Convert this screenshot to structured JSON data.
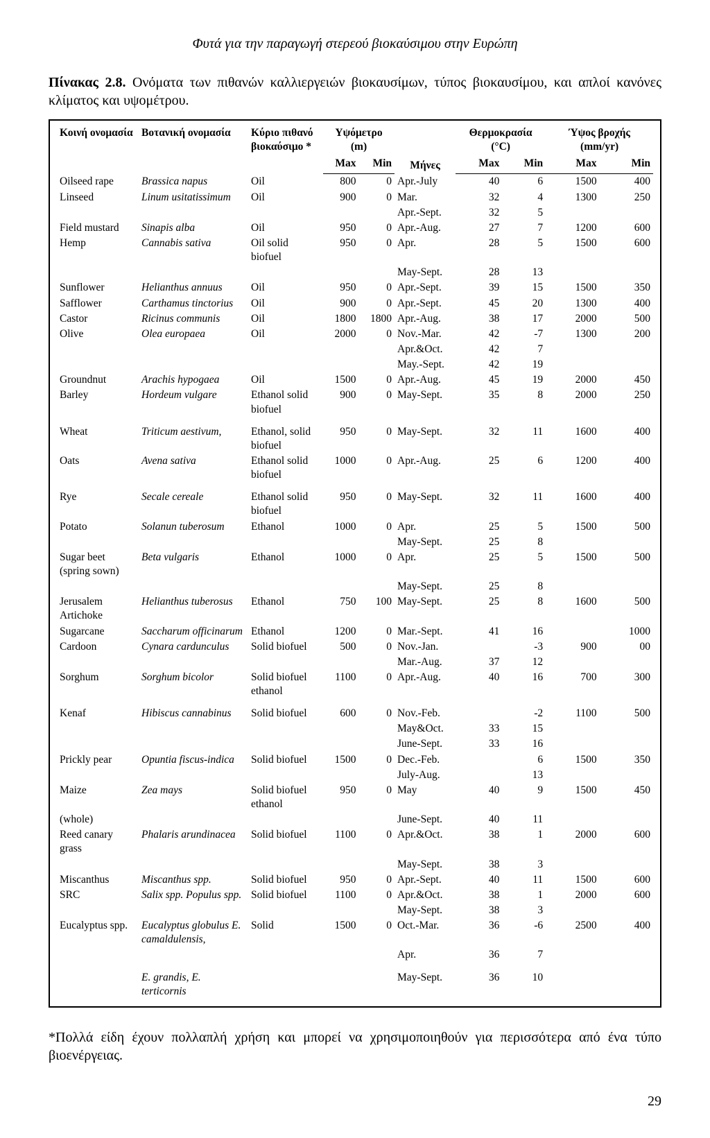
{
  "header_text": "Φυτά για την παραγωγή στερεού βιοκαύσιμου στην Ευρώπη",
  "caption_label": "Πίνακας 2.8.",
  "caption_text": " Ονόματα των πιθανών καλλιεργειών βιοκαυσίμων, τύπος βιοκαυσίμου, και απλοί κανόνες κλίματος και υψομέτρου.",
  "headers": {
    "common": "Κοινή ονομασία",
    "botanical": "Βοτανική ονομασία",
    "biofuel": "Κύριο πιθανό βιοκαύσιμο *",
    "altitude": "Υψόμετρο (m)",
    "temperature": "Θερμοκρασία (°C)",
    "rain": "Ύψος βροχής (mm/yr)",
    "max": "Max",
    "min": "Min",
    "months": "Μήνες"
  },
  "rows": [
    {
      "c": "Oilseed rape",
      "b": "Brassica napus",
      "f": "Oil",
      "amax": "800",
      "amin": "0",
      "m": "Apr.-July",
      "tmax": "40",
      "tmin": "6",
      "rmax": "1500",
      "rmin": "400"
    },
    {
      "c": "Linseed",
      "b": "Linum usitatissimum",
      "f": "Oil",
      "amax": "900",
      "amin": "0",
      "m": "Mar.",
      "tmax": "32",
      "tmin": "4",
      "rmax": "1300",
      "rmin": "250"
    },
    {
      "c": "",
      "b": "",
      "f": "",
      "amax": "",
      "amin": "",
      "m": "Apr.-Sept.",
      "tmax": "32",
      "tmin": "5",
      "rmax": "",
      "rmin": ""
    },
    {
      "c": "Field mustard",
      "b": "Sinapis alba",
      "f": "Oil",
      "amax": "950",
      "amin": "0",
      "m": "Apr.-Aug.",
      "tmax": "27",
      "tmin": "7",
      "rmax": "1200",
      "rmin": "600"
    },
    {
      "c": "Hemp",
      "b": "Cannabis sativa",
      "f": "Oil solid biofuel",
      "amax": "950",
      "amin": "0",
      "m": "Apr.",
      "tmax": "28",
      "tmin": "5",
      "rmax": "1500",
      "rmin": "600"
    },
    {
      "c": "",
      "b": "",
      "f": "",
      "amax": "",
      "amin": "",
      "m": "May-Sept.",
      "tmax": "28",
      "tmin": "13",
      "rmax": "",
      "rmin": ""
    },
    {
      "c": "Sunflower",
      "b": "Helianthus annuus",
      "f": "Oil",
      "amax": "950",
      "amin": "0",
      "m": "Apr.-Sept.",
      "tmax": "39",
      "tmin": "15",
      "rmax": "1500",
      "rmin": "350"
    },
    {
      "c": "Safflower",
      "b": "Carthamus tinctorius",
      "f": "Oil",
      "amax": "900",
      "amin": "0",
      "m": "Apr.-Sept.",
      "tmax": "45",
      "tmin": "20",
      "rmax": "1300",
      "rmin": "400"
    },
    {
      "c": "Castor",
      "b": "Ricinus communis",
      "f": "Oil",
      "amax": "1800",
      "amin": "1800",
      "m": "Apr.-Aug.",
      "tmax": "38",
      "tmin": "17",
      "rmax": "2000",
      "rmin": "500"
    },
    {
      "c": "Olive",
      "b": "Olea europaea",
      "f": "Oil",
      "amax": "2000",
      "amin": "0",
      "m": "Nov.-Mar.",
      "tmax": "42",
      "tmin": "-7",
      "rmax": "1300",
      "rmin": "200"
    },
    {
      "c": "",
      "b": "",
      "f": "",
      "amax": "",
      "amin": "",
      "m": "Apr.&Oct.",
      "tmax": "42",
      "tmin": "7",
      "rmax": "",
      "rmin": ""
    },
    {
      "c": "",
      "b": "",
      "f": "",
      "amax": "",
      "amin": "",
      "m": "May.-Sept.",
      "tmax": "42",
      "tmin": "19",
      "rmax": "",
      "rmin": ""
    },
    {
      "c": "Groundnut",
      "b": "Arachis hypogaea",
      "f": "Oil",
      "amax": "1500",
      "amin": "0",
      "m": "Apr.-Aug.",
      "tmax": "45",
      "tmin": "19",
      "rmax": "2000",
      "rmin": "450"
    },
    {
      "c": "Barley",
      "b": "Hordeum vulgare",
      "f": "Ethanol solid biofuel",
      "amax": "900",
      "amin": "0",
      "m": "May-Sept.",
      "tmax": "35",
      "tmin": "8",
      "rmax": "2000",
      "rmin": "250"
    },
    {
      "sep": true
    },
    {
      "c": "Wheat",
      "b": "Triticum aestivum,",
      "f": "Ethanol, solid biofuel",
      "amax": "950",
      "amin": "0",
      "m": "May-Sept.",
      "tmax": "32",
      "tmin": "11",
      "rmax": "1600",
      "rmin": "400"
    },
    {
      "c": "Oats",
      "b": "Avena sativa",
      "f": "Ethanol solid biofuel",
      "amax": "1000",
      "amin": "0",
      "m": "Apr.-Aug.",
      "tmax": "25",
      "tmin": "6",
      "rmax": "1200",
      "rmin": "400"
    },
    {
      "sep": true
    },
    {
      "c": "Rye",
      "b": "Secale cereale",
      "f": "Ethanol solid biofuel",
      "amax": "950",
      "amin": "0",
      "m": "May-Sept.",
      "tmax": "32",
      "tmin": "11",
      "rmax": "1600",
      "rmin": "400"
    },
    {
      "c": "Potato",
      "b": "Solanun tuberosum",
      "f": "Ethanol",
      "amax": "1000",
      "amin": "0",
      "m": "Apr.",
      "tmax": "25",
      "tmin": "5",
      "rmax": "1500",
      "rmin": "500"
    },
    {
      "c": "",
      "b": "",
      "f": "",
      "amax": "",
      "amin": "",
      "m": "May-Sept.",
      "tmax": "25",
      "tmin": "8",
      "rmax": "",
      "rmin": ""
    },
    {
      "c": "Sugar beet (spring sown)",
      "b": "Beta vulgaris",
      "f": "Ethanol",
      "amax": "1000",
      "amin": "0",
      "m": "Apr.",
      "tmax": "25",
      "tmin": "5",
      "rmax": "1500",
      "rmin": "500"
    },
    {
      "c": "",
      "b": "",
      "f": "",
      "amax": "",
      "amin": "",
      "m": "May-Sept.",
      "tmax": "25",
      "tmin": "8",
      "rmax": "",
      "rmin": ""
    },
    {
      "c": "Jerusalem Artichoke",
      "b": "Helianthus tuberosus",
      "f": "Ethanol",
      "amax": "750",
      "amin": "100",
      "m": "May-Sept.",
      "tmax": "25",
      "tmin": "8",
      "rmax": "1600",
      "rmin": "500"
    },
    {
      "c": "Sugarcane",
      "b": "Saccharum officinarum",
      "f": "Ethanol",
      "amax": "1200",
      "amin": "0",
      "m": "Mar.-Sept.",
      "tmax": "41",
      "tmin": "16",
      "rmax": "",
      "rmin": "1000"
    },
    {
      "c": "Cardoon",
      "b": "Cynara cardunculus",
      "f": "Solid biofuel",
      "amax": "500",
      "amin": "0",
      "m": "Nov.-Jan.",
      "tmax": "",
      "tmin": "-3",
      "rmax": "900",
      "rmin": "00"
    },
    {
      "c": "",
      "b": "",
      "f": "",
      "amax": "",
      "amin": "",
      "m": "Mar.-Aug.",
      "tmax": "37",
      "tmin": "12",
      "rmax": "",
      "rmin": ""
    },
    {
      "c": "Sorghum",
      "b": "Sorghum bicolor",
      "f": "Solid biofuel ethanol",
      "amax": "1100",
      "amin": "0",
      "m": "Apr.-Aug.",
      "tmax": "40",
      "tmin": "16",
      "rmax": "700",
      "rmin": "300"
    },
    {
      "sep": true
    },
    {
      "c": "Kenaf",
      "b": "Hibiscus cannabinus",
      "f": "Solid biofuel",
      "amax": "600",
      "amin": "0",
      "m": "Nov.-Feb.",
      "tmax": "",
      "tmin": "-2",
      "rmax": "1100",
      "rmin": "500"
    },
    {
      "c": "",
      "b": "",
      "f": "",
      "amax": "",
      "amin": "",
      "m": "May&Oct.",
      "tmax": "33",
      "tmin": "15",
      "rmax": "",
      "rmin": ""
    },
    {
      "c": "",
      "b": "",
      "f": "",
      "amax": "",
      "amin": "",
      "m": "June-Sept.",
      "tmax": "33",
      "tmin": "16",
      "rmax": "",
      "rmin": ""
    },
    {
      "c": "Prickly pear",
      "b": "Opuntia fiscus-indica",
      "f": "Solid biofuel",
      "amax": "1500",
      "amin": "0",
      "m": "Dec.-Feb.",
      "tmax": "",
      "tmin": "6",
      "rmax": "1500",
      "rmin": "350"
    },
    {
      "c": "",
      "b": "",
      "f": "",
      "amax": "",
      "amin": "",
      "m": "July-Aug.",
      "tmax": "",
      "tmin": "13",
      "rmax": "",
      "rmin": ""
    },
    {
      "c": "Maize",
      "b": "Zea mays",
      "f": "Solid biofuel ethanol",
      "amax": "950",
      "amin": "0",
      "m": "May",
      "tmax": "40",
      "tmin": "9",
      "rmax": "1500",
      "rmin": "450"
    },
    {
      "c": "(whole)",
      "b": "",
      "f": "",
      "amax": "",
      "amin": "",
      "m": "June-Sept.",
      "tmax": "40",
      "tmin": "11",
      "rmax": "",
      "rmin": ""
    },
    {
      "c": "Reed canary grass",
      "b": "Phalaris arundinacea",
      "f": "Solid biofuel",
      "amax": "1100",
      "amin": "0",
      "m": "Apr.&Oct.",
      "tmax": "38",
      "tmin": "1",
      "rmax": "2000",
      "rmin": "600"
    },
    {
      "c": "",
      "b": "",
      "f": "",
      "amax": "",
      "amin": "",
      "m": "May-Sept.",
      "tmax": "38",
      "tmin": "3",
      "rmax": "",
      "rmin": ""
    },
    {
      "c": "Miscanthus",
      "b": "Miscanthus spp.",
      "f": "Solid biofuel",
      "amax": "950",
      "amin": "0",
      "m": "Apr.-Sept.",
      "tmax": "40",
      "tmin": "11",
      "rmax": "1500",
      "rmin": "600"
    },
    {
      "c": "SRC",
      "b": "Salix spp. Populus spp.",
      "f": "Solid biofuel",
      "amax": "1100",
      "amin": "0",
      "m": "Apr.&Oct.",
      "tmax": "38",
      "tmin": "1",
      "rmax": "2000",
      "rmin": "600"
    },
    {
      "c": "",
      "b": "",
      "f": "",
      "amax": "",
      "amin": "",
      "m": "May-Sept.",
      "tmax": "38",
      "tmin": "3",
      "rmax": "",
      "rmin": ""
    },
    {
      "c": "Eucalyptus spp.",
      "b": "Eucalyptus globulus E. camaldulensis,",
      "f": "Solid",
      "amax": "1500",
      "amin": "0",
      "m": "Oct.-Mar.",
      "tmax": "36",
      "tmin": "-6",
      "rmax": "2500",
      "rmin": "400"
    },
    {
      "c": "",
      "b": "",
      "f": "",
      "amax": "",
      "amin": "",
      "m": "Apr.",
      "tmax": "36",
      "tmin": "7",
      "rmax": "",
      "rmin": ""
    },
    {
      "sep": true
    },
    {
      "c": "",
      "b": "E. grandis, E. terticornis",
      "f": "",
      "amax": "",
      "amin": "",
      "m": "May-Sept.",
      "tmax": "36",
      "tmin": "10",
      "rmax": "",
      "rmin": ""
    }
  ],
  "footnote": "*Πολλά είδη έχουν πολλαπλή χρήση και μπορεί να χρησιμοποιηθούν για περισσότερα από ένα τύπο βιοενέργειας.",
  "page_number": "29"
}
